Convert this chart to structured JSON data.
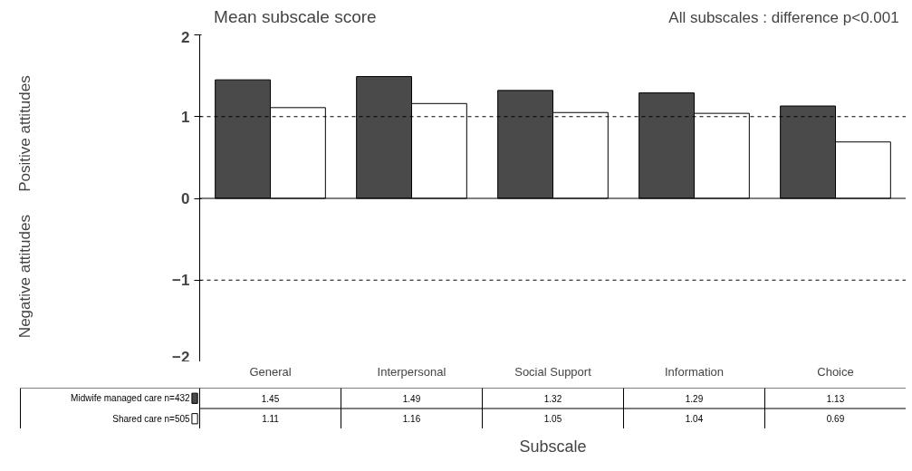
{
  "chart_data": {
    "type": "bar",
    "title": "Mean subscale score",
    "xlabel": "Subscale",
    "annotations": [
      "All subscales : difference p<0.001",
      "Positive attitudes",
      "Negative attitudes"
    ],
    "categories": [
      "General",
      "Interpersonal",
      "Social Support",
      "Information",
      "Choice"
    ],
    "series": [
      {
        "name": "Midwife managed care n=432",
        "color": "#4a4a4a",
        "values": [
          1.45,
          1.49,
          1.32,
          1.29,
          1.13
        ],
        "value_labels": [
          "1.45",
          "1.49",
          "1.32",
          "1.29",
          "1.13"
        ]
      },
      {
        "name": "Shared care n=505",
        "color": "#ffffff",
        "values": [
          1.11,
          1.16,
          1.05,
          1.04,
          0.69
        ],
        "value_labels": [
          "1.11",
          "1.16",
          "1.05",
          "1.04",
          "0.69"
        ]
      }
    ],
    "ylim": [
      -2,
      2
    ],
    "yticks": [
      -2,
      -1,
      0,
      1,
      2
    ],
    "grid": false,
    "legend": "bottom left",
    "ref_lines": [
      {
        "axis": "y",
        "value": 1,
        "line_style": "dashed"
      },
      {
        "axis": "y",
        "value": -1,
        "line_style": "dashed"
      },
      {
        "axis": "y",
        "value": 0,
        "line_style": "solid"
      }
    ]
  }
}
